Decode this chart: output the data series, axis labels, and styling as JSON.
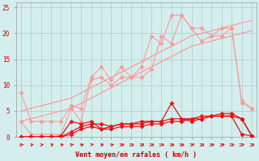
{
  "x": [
    0,
    1,
    2,
    3,
    4,
    5,
    6,
    7,
    8,
    9,
    10,
    11,
    12,
    13,
    14,
    15,
    16,
    17,
    18,
    19,
    20,
    21,
    22,
    23
  ],
  "line_gust1": [
    8.5,
    3.0,
    3.0,
    3.0,
    3.0,
    6.0,
    5.5,
    11.5,
    13.5,
    11.0,
    13.5,
    11.5,
    13.5,
    19.5,
    18.0,
    23.5,
    23.5,
    21.0,
    18.5,
    19.5,
    19.5,
    21.0,
    7.0,
    5.5
  ],
  "line_gust2": [
    3.0,
    0.5,
    0.5,
    0.5,
    0.5,
    5.5,
    3.0,
    11.0,
    11.5,
    10.0,
    11.5,
    11.5,
    11.5,
    13.0,
    19.5,
    18.0,
    23.5,
    21.0,
    21.0,
    19.5,
    21.0,
    21.0,
    6.5,
    5.5
  ],
  "line_slope1": [
    5.0,
    5.5,
    6.0,
    6.5,
    7.0,
    7.5,
    8.5,
    9.5,
    10.5,
    11.5,
    12.5,
    13.5,
    14.5,
    15.5,
    16.5,
    17.5,
    18.5,
    19.5,
    20.0,
    20.5,
    21.0,
    21.5,
    22.0,
    22.5
  ],
  "line_slope2": [
    3.0,
    3.5,
    4.0,
    4.5,
    5.0,
    5.5,
    6.5,
    7.5,
    8.5,
    9.5,
    10.5,
    11.5,
    12.5,
    13.5,
    14.5,
    15.5,
    16.5,
    17.5,
    18.0,
    18.5,
    19.0,
    19.5,
    20.0,
    20.5
  ],
  "line_mean1": [
    0.0,
    0.0,
    0.0,
    0.0,
    0.2,
    3.0,
    2.5,
    3.0,
    1.5,
    2.0,
    2.5,
    2.5,
    2.5,
    3.0,
    3.0,
    6.5,
    3.5,
    3.0,
    3.5,
    4.0,
    4.0,
    4.0,
    0.5,
    0.2
  ],
  "line_mean2": [
    0.0,
    0.0,
    0.0,
    0.0,
    0.0,
    1.0,
    2.0,
    2.5,
    2.5,
    2.0,
    2.5,
    2.5,
    3.0,
    3.0,
    3.0,
    3.5,
    3.5,
    3.5,
    4.0,
    4.0,
    4.0,
    4.0,
    3.5,
    0.2
  ],
  "line_mean3": [
    0.0,
    0.0,
    0.0,
    0.0,
    0.0,
    0.5,
    1.5,
    2.0,
    1.5,
    1.5,
    2.0,
    2.0,
    2.0,
    2.5,
    2.5,
    3.0,
    3.0,
    3.5,
    3.5,
    4.0,
    4.5,
    4.5,
    3.5,
    0.2
  ],
  "bg_color": "#d4eeee",
  "grid_color": "#aacccc",
  "color_light": "#ff9999",
  "color_dark": "#ee1111",
  "color_medium": "#dd3333",
  "xlabel": "Vent moyen/en rafales ( km/h )",
  "ylim": [
    0,
    26
  ],
  "xlim": [
    -0.5,
    23.5
  ]
}
